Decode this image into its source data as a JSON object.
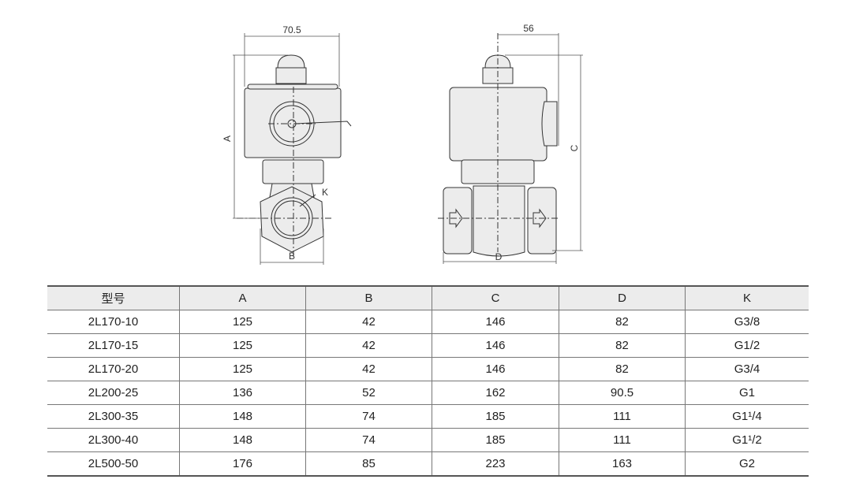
{
  "drawing": {
    "dim_width_front": "70.5",
    "dim_width_side": "56",
    "label_a": "A",
    "label_b": "B",
    "label_c": "C",
    "label_d": "D",
    "label_k": "K"
  },
  "table": {
    "headers": [
      "型号",
      "A",
      "B",
      "C",
      "D",
      "K"
    ],
    "rows": [
      [
        "2L170-10",
        "125",
        "42",
        "146",
        "82",
        "G3/8"
      ],
      [
        "2L170-15",
        "125",
        "42",
        "146",
        "82",
        "G1/2"
      ],
      [
        "2L170-20",
        "125",
        "42",
        "146",
        "82",
        "G3/4"
      ],
      [
        "2L200-25",
        "136",
        "52",
        "162",
        "90.5",
        "G1"
      ],
      [
        "2L300-35",
        "148",
        "74",
        "185",
        "111",
        "G1¹/4"
      ],
      [
        "2L300-40",
        "148",
        "74",
        "185",
        "111",
        "G1¹/2"
      ],
      [
        "2L500-50",
        "176",
        "85",
        "223",
        "163",
        "G2"
      ]
    ]
  }
}
